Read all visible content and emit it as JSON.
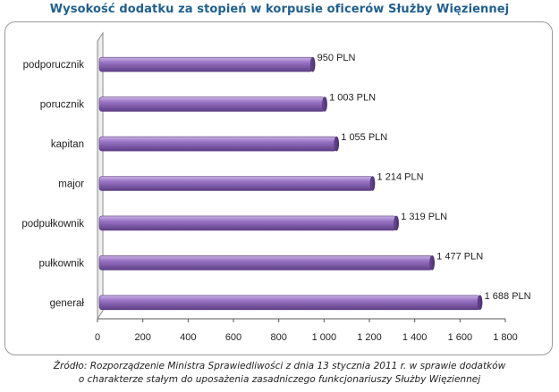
{
  "title": "Wysokość dodatku za stopień w korpusie oficerów Służby Więziennej",
  "source_lines": [
    "Źródło: Rozporządzenie Ministra Sprawiedliwości  z dnia 13 stycznia 2011 r. w sprawie  dodatków",
    "o charakterze  stałym do uposażenia zasadniczego funkcjonariuszy Służby Więziennej"
  ],
  "chart_data": {
    "type": "bar",
    "orientation": "horizontal",
    "categories": [
      "podporucznik",
      "porucznik",
      "kapitan",
      "major",
      "podpułkownik",
      "pułkownik",
      "generał"
    ],
    "values": [
      950,
      1003,
      1055,
      1214,
      1319,
      1477,
      1688
    ],
    "data_labels": [
      "950 PLN",
      "1 003 PLN",
      "1 055 PLN",
      "1 214 PLN",
      "1 319 PLN",
      "1 477 PLN",
      "1 688 PLN"
    ],
    "xlim": [
      0,
      1800
    ],
    "xticks": [
      0,
      200,
      400,
      600,
      800,
      1000,
      1200,
      1400,
      1600,
      1800
    ],
    "xtick_labels": [
      "0",
      "200",
      "400",
      "600",
      "800",
      "1 000",
      "1 200",
      "1 400",
      "1 600",
      "1 800"
    ],
    "bar_color": "#8a63b4",
    "grid": false,
    "legend": "none"
  }
}
